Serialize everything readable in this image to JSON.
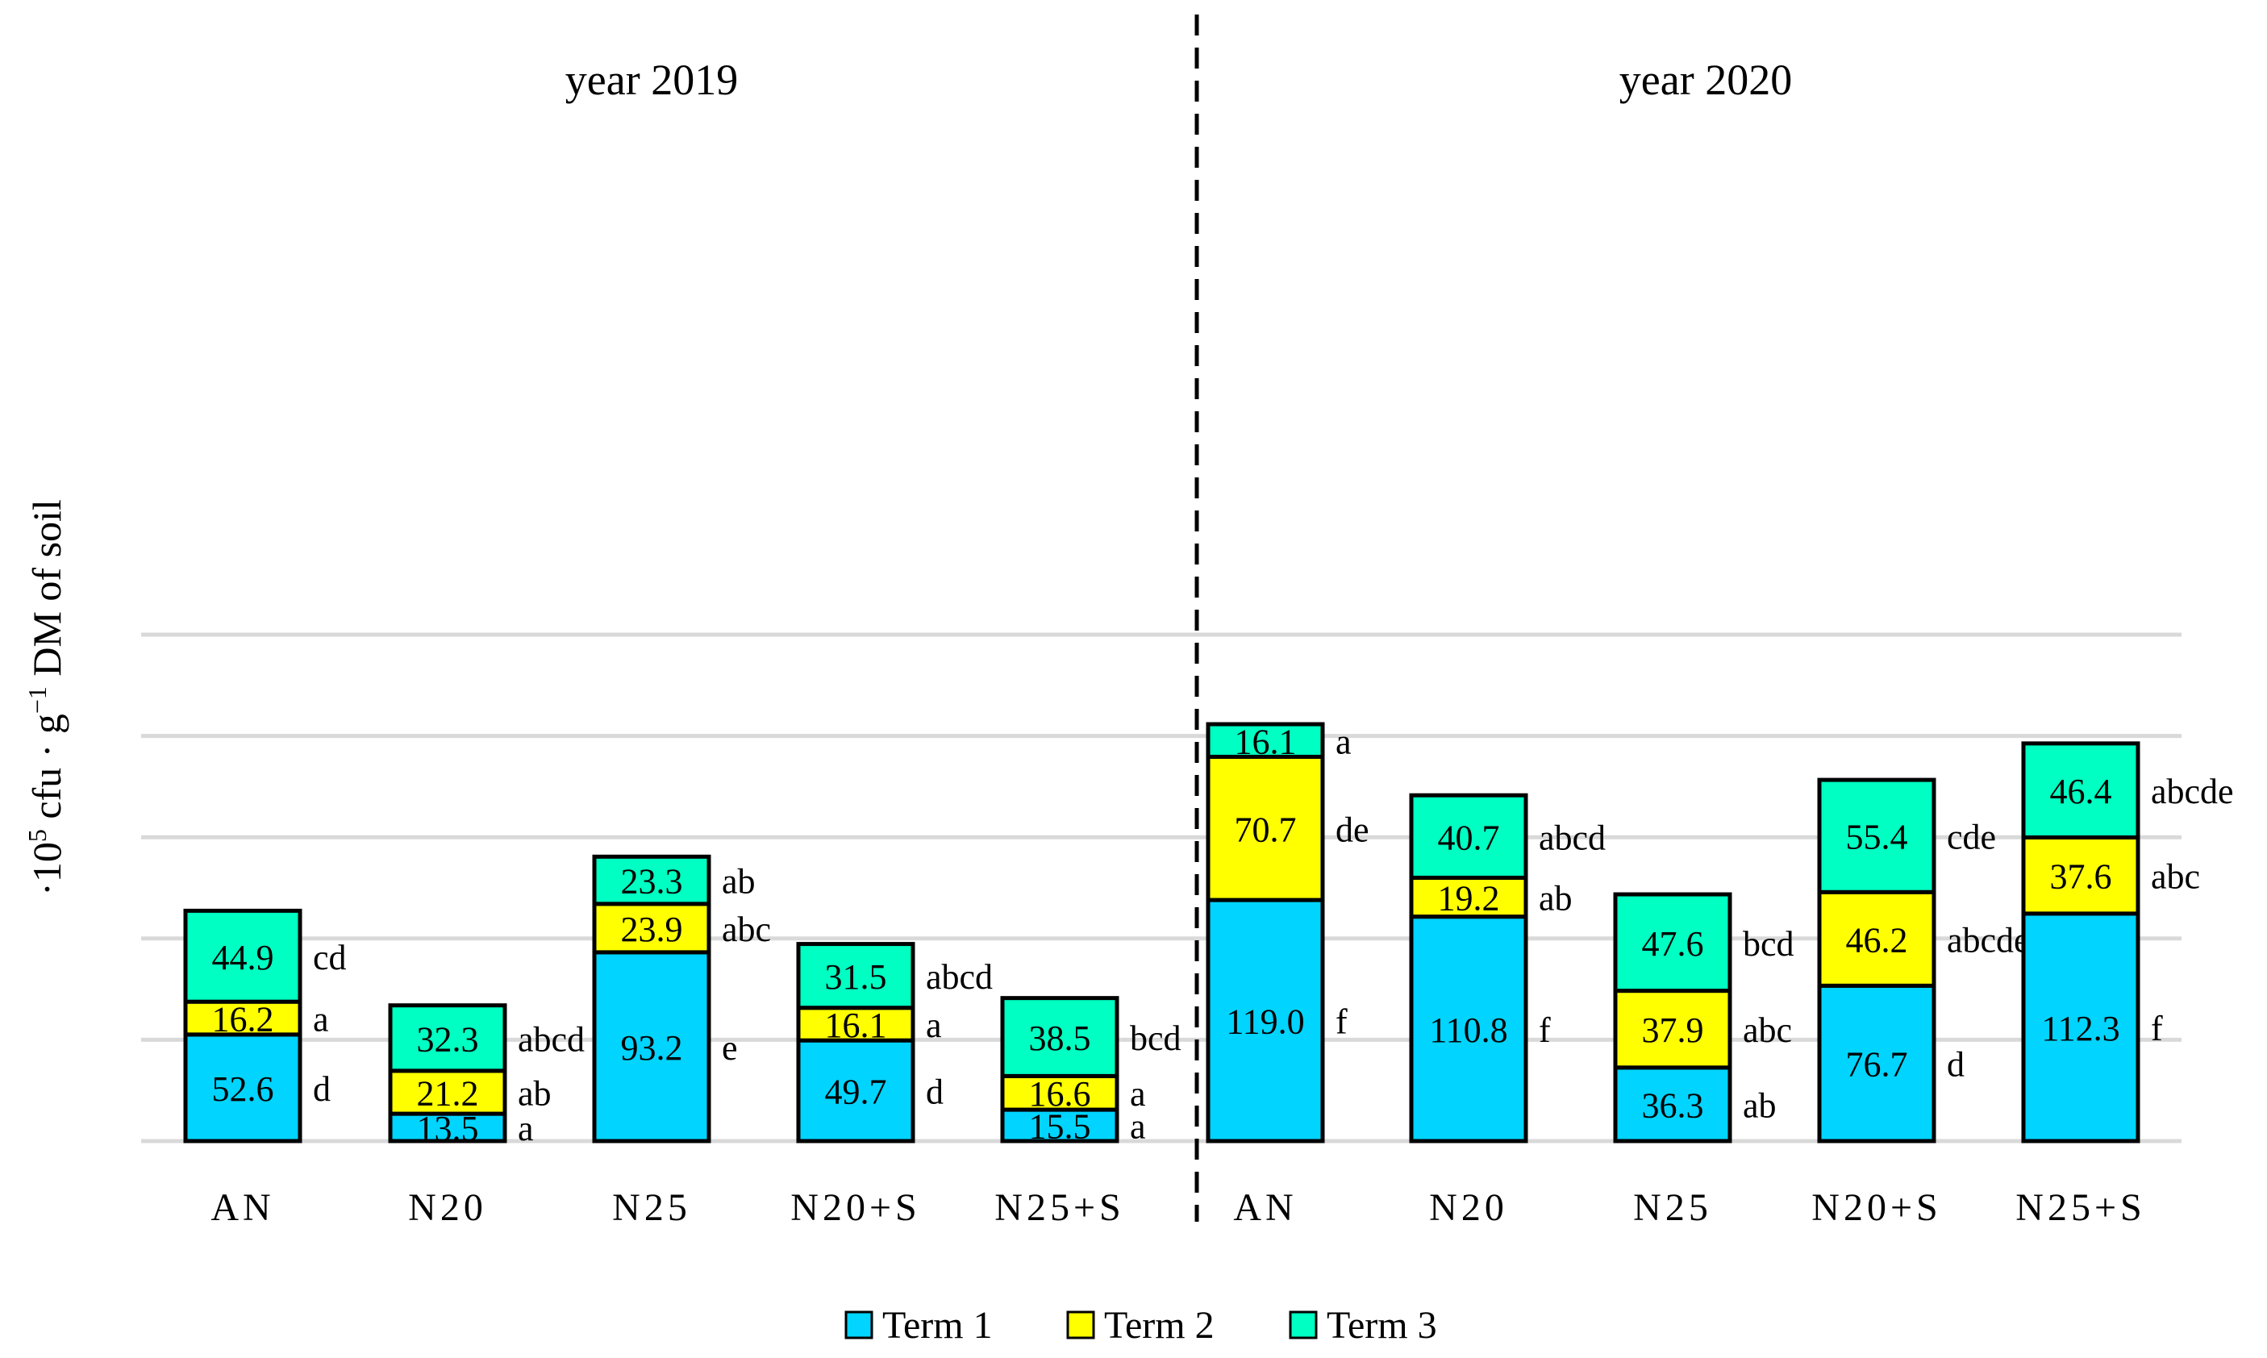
{
  "chart_data": {
    "type": "bar",
    "stacked": true,
    "ylabel_parts": [
      "·10",
      "5",
      " cfu · g",
      "−1",
      " DM of soil"
    ],
    "grid": true,
    "gridlines_y": [
      0,
      50,
      100,
      150,
      200,
      250
    ],
    "legend_position": "bottom",
    "groups": [
      {
        "label": "year 2019",
        "categories": [
          "AN",
          "N20",
          "N25",
          "N20+S",
          "N25+S"
        ]
      },
      {
        "label": "year 2020",
        "categories": [
          "AN",
          "N20",
          "N25",
          "N20+S",
          "N25+S"
        ]
      }
    ],
    "series": [
      {
        "name": "Term 1",
        "color": "#00d4ff",
        "values": [
          52.6,
          13.5,
          93.2,
          49.7,
          15.5,
          119.0,
          110.8,
          36.3,
          76.7,
          112.3
        ],
        "value_labels": [
          "52.6",
          "13.5",
          "93.2",
          "49.7",
          "15.5",
          "119.0",
          "110.8",
          "36.3",
          "76.7",
          "112.3"
        ],
        "letters": [
          "d",
          "a",
          "e",
          "d",
          "a",
          "f",
          "f",
          "ab",
          "d",
          "f"
        ]
      },
      {
        "name": "Term 2",
        "color": "#ffff00",
        "values": [
          16.2,
          21.2,
          23.9,
          16.1,
          16.6,
          70.7,
          19.2,
          37.9,
          46.2,
          37.6
        ],
        "value_labels": [
          "16.2",
          "21.2",
          "23.9",
          "16.1",
          "16.6",
          "70.7",
          "19.2",
          "37.9",
          "46.2",
          "37.6"
        ],
        "letters": [
          "a",
          "ab",
          "abc",
          "a",
          "a",
          "de",
          "ab",
          "abc",
          "abcde",
          "abc"
        ]
      },
      {
        "name": "Term 3",
        "color": "#00ffc2",
        "values": [
          44.9,
          32.3,
          23.3,
          31.5,
          38.5,
          16.1,
          40.7,
          47.6,
          55.4,
          46.4
        ],
        "value_labels": [
          "44.9",
          "32.3",
          "23.3",
          "31.5",
          "38.5",
          "16.1",
          "40.7",
          "47.6",
          "55.4",
          "46.4"
        ],
        "letters": [
          "cd",
          "abcd",
          "ab",
          "abcd",
          "bcd",
          "a",
          "abcd",
          "bcd",
          "cde",
          "abcde"
        ]
      }
    ]
  }
}
